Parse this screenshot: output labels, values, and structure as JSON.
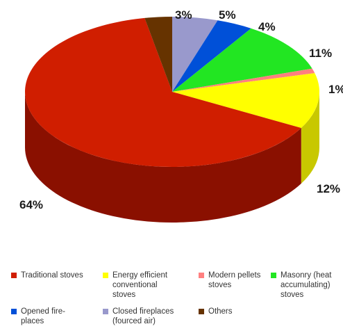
{
  "chart_data": {
    "type": "pie",
    "title": "",
    "slices": [
      {
        "label": "Traditional stoves",
        "value": 64,
        "display": "64%",
        "color": "#d01e00",
        "side_color": "#8a1000"
      },
      {
        "label": "Energy efficient\nconventional\nstoves",
        "value": 12,
        "display": "12%",
        "color": "#ffff00",
        "side_color": "#c8c800"
      },
      {
        "label": "Modern pellets\nstoves",
        "value": 1,
        "display": "1%",
        "color": "#ff8080",
        "side_color": "#c86060"
      },
      {
        "label": "Masonry (heat\naccumulating)\nstoves",
        "value": 11,
        "display": "11%",
        "color": "#22e622",
        "side_color": "#14a014"
      },
      {
        "label": "Opened fire-\nplaces",
        "value": 4,
        "display": "4%",
        "color": "#0050d8",
        "side_color": "#003090"
      },
      {
        "label": "Closed fireplaces\n(fourced air)",
        "value": 5,
        "display": "5%",
        "color": "#9999cc",
        "side_color": "#6a6a99"
      },
      {
        "label": "Others",
        "value": 3,
        "display": "3%",
        "color": "#663300",
        "side_color": "#3d1e00"
      }
    ],
    "legend_position": "bottom",
    "style": "3d-pie"
  }
}
